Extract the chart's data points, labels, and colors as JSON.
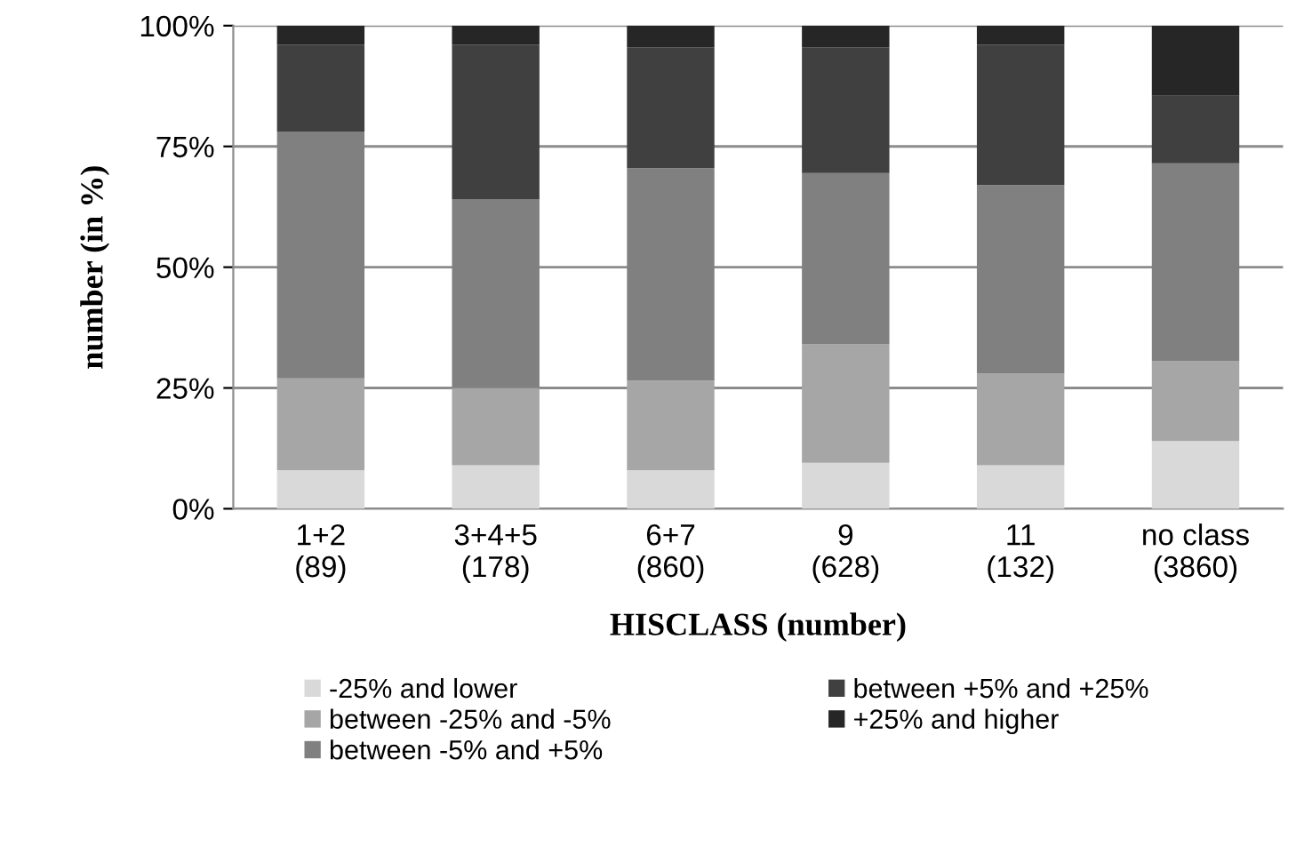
{
  "chart_data": {
    "type": "bar",
    "stacked": true,
    "xlabel": "HISCLASS (number)",
    "ylabel": "number (in %)",
    "categories": [
      "1+2\n(89)",
      "3+4+5\n(178)",
      "6+7\n(860)",
      "9\n(628)",
      "11\n(132)",
      "no class\n(3860)"
    ],
    "series": [
      {
        "name": "-25% and lower",
        "color": "#d9d9d9",
        "values": [
          8,
          9,
          8,
          9.5,
          9,
          14
        ]
      },
      {
        "name": "between -25% and -5%",
        "color": "#a6a6a6",
        "values": [
          19,
          16,
          18.5,
          24.5,
          19,
          16.5
        ]
      },
      {
        "name": "between -5% and +5%",
        "color": "#808080",
        "values": [
          51,
          39,
          44,
          35.5,
          39,
          41
        ]
      },
      {
        "name": "between +5% and +25%",
        "color": "#404040",
        "values": [
          18,
          32,
          25,
          26,
          29,
          14
        ]
      },
      {
        "name": "+25% and higher",
        "color": "#262626",
        "values": [
          4,
          4,
          4.5,
          4.5,
          4,
          14.5
        ]
      }
    ],
    "ylim": [
      0,
      100
    ],
    "yticks": [
      {
        "value": 0,
        "label": "0%"
      },
      {
        "value": 25,
        "label": "25%"
      },
      {
        "value": 50,
        "label": "50%"
      },
      {
        "value": 75,
        "label": "75%"
      },
      {
        "value": 100,
        "label": "100%"
      }
    ],
    "grid": "y",
    "legend": "bottom"
  }
}
